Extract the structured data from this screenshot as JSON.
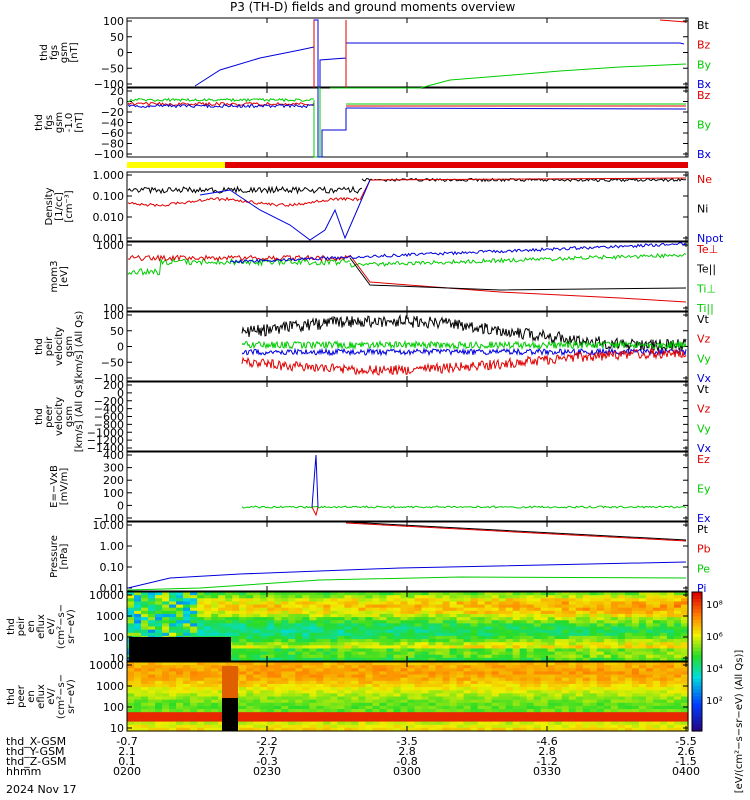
{
  "title": "P3 (TH-D) fields and ground moments overview",
  "date": "2024 Nov 17",
  "colors": {
    "black": "#000000",
    "red": "#e00000",
    "green": "#00cc00",
    "blue": "#0000dd",
    "yellow": "#ffff00"
  },
  "chart_data": [
    {
      "type": "line",
      "ylabel": [
        "thd",
        "fgs",
        "gsm",
        "[nT]"
      ],
      "ylim": [
        -100,
        100
      ],
      "yticks": [
        "100",
        "50",
        "0",
        "−50",
        "−100"
      ],
      "legend": [
        {
          "name": "Bt",
          "color": "black"
        },
        {
          "name": "Bz",
          "color": "red"
        },
        {
          "name": "By",
          "color": "green"
        },
        {
          "name": "Bx",
          "color": "blue"
        }
      ]
    },
    {
      "type": "line",
      "ylabel": [
        "thd",
        "fgs",
        "gsm",
        "-1.0",
        "[nT]"
      ],
      "ylim": [
        -100,
        20
      ],
      "yticks": [
        "20",
        "0",
        "−20",
        "−40",
        "−60",
        "−80",
        "−100"
      ],
      "legend": [
        {
          "name": "Bz",
          "color": "red"
        },
        {
          "name": "By",
          "color": "green"
        },
        {
          "name": "Bx",
          "color": "blue"
        }
      ]
    },
    {
      "type": "line",
      "scale": "log",
      "ylabel": [
        "Density",
        "[1/cc]",
        "[cm⁻³]"
      ],
      "ylim": [
        0.001,
        1.0
      ],
      "yticks": [
        "1.000",
        "0.100",
        "0.010",
        "0.001"
      ],
      "legend": [
        {
          "name": "Ne",
          "color": "red"
        },
        {
          "name": "Ni",
          "color": "black"
        },
        {
          "name": "Npot",
          "color": "blue"
        }
      ]
    },
    {
      "type": "line",
      "scale": "log",
      "ylabel": [
        "mom3",
        "[eV]"
      ],
      "ylim": [
        100,
        5000
      ],
      "yticks": [
        "1000",
        "100"
      ],
      "legend": [
        {
          "name": "Te⊥",
          "color": "red"
        },
        {
          "name": "Te||",
          "color": "black"
        },
        {
          "name": "Ti⊥",
          "color": "green"
        },
        {
          "name": "Ti||",
          "color": "green"
        }
      ]
    },
    {
      "type": "line",
      "ylabel": [
        "thd",
        "peir",
        "velocity",
        "gsm",
        "[km/s] (All Qs)"
      ],
      "ylim": [
        -100,
        100
      ],
      "yticks": [
        "100",
        "50",
        "0",
        "−50",
        "−100"
      ],
      "legend": [
        {
          "name": "Vt",
          "color": "black"
        },
        {
          "name": "Vz",
          "color": "red"
        },
        {
          "name": "Vy",
          "color": "green"
        },
        {
          "name": "Vx",
          "color": "blue"
        }
      ]
    },
    {
      "type": "line",
      "ylabel": [
        "thd",
        "peer",
        "velocity",
        "gsm",
        "[km/s] (All Qs)"
      ],
      "ylim": [
        -1400,
        200
      ],
      "yticks": [
        "200",
        "0",
        "−200",
        "−400",
        "−600",
        "−800",
        "−1000",
        "−1200",
        "−1400"
      ],
      "legend": [
        {
          "name": "Vt",
          "color": "black"
        },
        {
          "name": "Vz",
          "color": "red"
        },
        {
          "name": "Vy",
          "color": "green"
        },
        {
          "name": "Vx",
          "color": "blue"
        }
      ]
    },
    {
      "type": "line",
      "ylabel": [
        "E=−VxB",
        "[mV/m]"
      ],
      "ylim": [
        -100,
        400
      ],
      "yticks": [
        "400",
        "300",
        "200",
        "100",
        "0",
        "−100"
      ],
      "legend": [
        {
          "name": "Ez",
          "color": "red"
        },
        {
          "name": "Ey",
          "color": "green"
        },
        {
          "name": "Ex",
          "color": "blue"
        }
      ]
    },
    {
      "type": "line",
      "scale": "log",
      "ylabel": [
        "Pressure",
        "[nPa]"
      ],
      "ylim": [
        0.01,
        10.0
      ],
      "yticks": [
        "10.00",
        "1.00",
        "0.10",
        "0.01"
      ],
      "legend": [
        {
          "name": "Pt",
          "color": "black"
        },
        {
          "name": "Pb",
          "color": "red"
        },
        {
          "name": "Pe",
          "color": "green"
        },
        {
          "name": "Pi",
          "color": "blue"
        }
      ]
    },
    {
      "type": "heatmap",
      "ylabel": [
        "thd",
        "peir",
        "en",
        "eflux",
        "eV/",
        "(cm²−s−",
        "sr−eV)"
      ],
      "ylim": [
        10,
        10000
      ],
      "yticks": [
        "10000",
        "1000",
        "100",
        "10"
      ]
    },
    {
      "type": "heatmap",
      "ylabel": [
        "thd",
        "peer",
        "en",
        "eflux",
        "eV/",
        "(cm²−s−",
        "sr−eV)"
      ],
      "ylim": [
        10,
        10000
      ],
      "yticks": [
        "10000",
        "1000",
        "100",
        "10"
      ]
    }
  ],
  "colorbar": {
    "ticks": [
      "10⁸",
      "10⁶",
      "10⁴",
      "10²"
    ],
    "label": "[eV/(cm²−s−sr−eV) (All Qs)]"
  },
  "xaxis": {
    "rows": [
      {
        "label": "thd_X-GSM",
        "values": [
          "-0.7",
          "-2.2",
          "-3.5",
          "-4.6",
          "-5.5"
        ]
      },
      {
        "label": "thd_Y-GSM",
        "values": [
          "2.1",
          "2.7",
          "2.8",
          "2.8",
          "2.6"
        ]
      },
      {
        "label": "thd_Z-GSM",
        "values": [
          "0.1",
          "-0.3",
          "-0.8",
          "-1.2",
          "-1.5"
        ]
      },
      {
        "label": "hhmm",
        "values": [
          "0200",
          "0230",
          "0300",
          "0330",
          "0400"
        ]
      }
    ]
  }
}
